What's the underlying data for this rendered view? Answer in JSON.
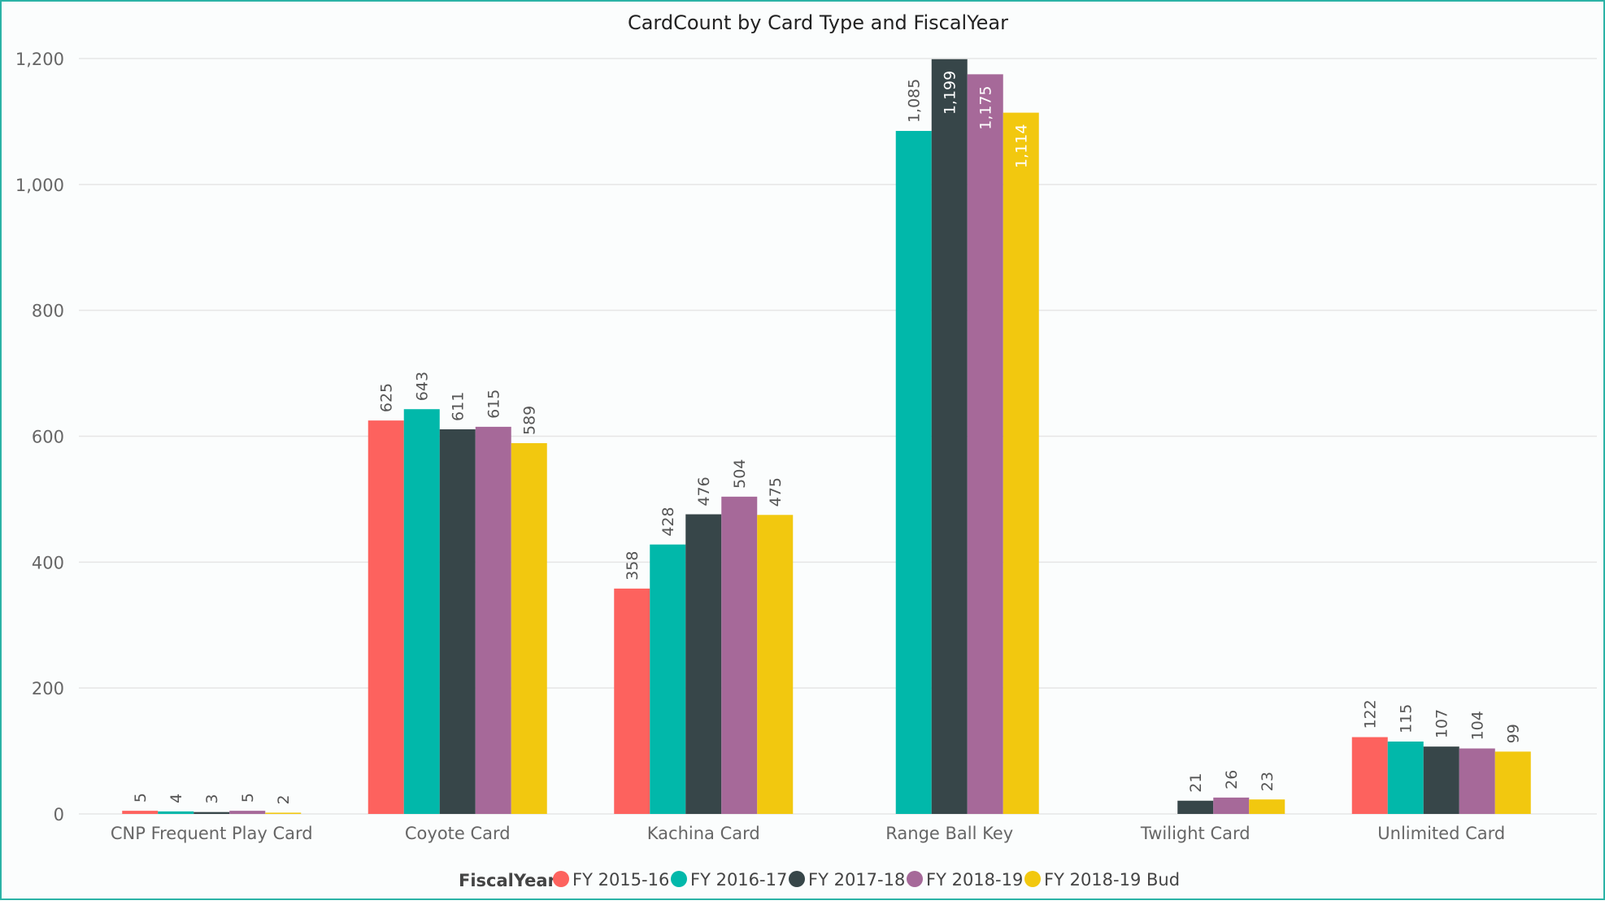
{
  "chart_data": {
    "type": "bar",
    "title": "CardCount by Card Type and FiscalYear",
    "xlabel": "",
    "ylabel": "",
    "ylim": [
      0,
      1200
    ],
    "yticks": [
      0,
      200,
      400,
      600,
      800,
      1000,
      1200
    ],
    "ytick_labels": [
      "0",
      "200",
      "400",
      "600",
      "800",
      "1,000",
      "1,200"
    ],
    "grid": true,
    "legend_title": "FiscalYear",
    "legend_position": "bottom",
    "categories": [
      "CNP Frequent Play Card",
      "Coyote Card",
      "Kachina Card",
      "Range Ball Key",
      "Twilight Card",
      "Unlimited Card"
    ],
    "series": [
      {
        "name": "FY 2015-16",
        "color": "#fd625e",
        "values": [
          5,
          625,
          358,
          null,
          null,
          122
        ]
      },
      {
        "name": "FY 2016-17",
        "color": "#01b8aa",
        "values": [
          4,
          643,
          428,
          1085,
          null,
          115
        ]
      },
      {
        "name": "FY 2017-18",
        "color": "#374649",
        "values": [
          3,
          611,
          476,
          1199,
          21,
          107
        ]
      },
      {
        "name": "FY 2018-19",
        "color": "#a66999",
        "values": [
          5,
          615,
          504,
          1175,
          26,
          104
        ]
      },
      {
        "name": "FY 2018-19 Bud",
        "color": "#f2c80f",
        "values": [
          2,
          589,
          475,
          1114,
          23,
          99
        ]
      }
    ]
  }
}
